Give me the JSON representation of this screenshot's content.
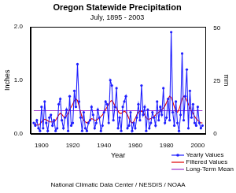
{
  "chart_data": {
    "type": "line",
    "title": "Oregon Statewide Precipitation",
    "subtitle": "July, 1895 - 2003",
    "xlabel": "Year",
    "ylabel": "Inches",
    "y2label": "mm",
    "source": "National Climatic Data Center / NESDIS / NOAA",
    "x": [
      1895,
      1896,
      1897,
      1898,
      1899,
      1900,
      1901,
      1902,
      1903,
      1904,
      1905,
      1906,
      1907,
      1908,
      1909,
      1910,
      1911,
      1912,
      1913,
      1914,
      1915,
      1916,
      1917,
      1918,
      1919,
      1920,
      1921,
      1922,
      1923,
      1924,
      1925,
      1926,
      1927,
      1928,
      1929,
      1930,
      1931,
      1932,
      1933,
      1934,
      1935,
      1936,
      1937,
      1938,
      1939,
      1940,
      1941,
      1942,
      1943,
      1944,
      1945,
      1946,
      1947,
      1948,
      1949,
      1950,
      1951,
      1952,
      1953,
      1954,
      1955,
      1956,
      1957,
      1958,
      1959,
      1960,
      1961,
      1962,
      1963,
      1964,
      1965,
      1966,
      1967,
      1968,
      1969,
      1970,
      1971,
      1972,
      1973,
      1974,
      1975,
      1976,
      1977,
      1978,
      1979,
      1980,
      1981,
      1982,
      1983,
      1984,
      1985,
      1986,
      1987,
      1988,
      1989,
      1990,
      1991,
      1992,
      1993,
      1994,
      1995,
      1996,
      1997,
      1998,
      1999,
      2000,
      2001,
      2002,
      2003
    ],
    "series": [
      {
        "name": "Yearly Values",
        "color": "#1f1fff",
        "marker": "circle",
        "line_style": "solid",
        "values": [
          0.2,
          0.15,
          0.25,
          0.1,
          0.05,
          0.5,
          0.1,
          0.6,
          0.2,
          0.05,
          0.3,
          0.35,
          0.15,
          0.25,
          0.05,
          0.1,
          0.55,
          0.65,
          0.25,
          0.1,
          0.3,
          0.45,
          0.05,
          0.7,
          0.15,
          0.2,
          0.8,
          0.5,
          1.3,
          0.6,
          0.3,
          0.05,
          0.4,
          0.1,
          0.05,
          0.2,
          0.25,
          0.5,
          0.35,
          0.1,
          0.2,
          0.45,
          0.3,
          0.05,
          0.15,
          0.4,
          0.6,
          0.55,
          0.2,
          1.0,
          0.9,
          0.25,
          0.5,
          0.85,
          0.1,
          0.3,
          0.05,
          0.5,
          0.6,
          0.7,
          0.1,
          0.15,
          0.4,
          0.05,
          0.2,
          0.1,
          0.3,
          0.55,
          0.25,
          0.9,
          0.35,
          0.5,
          0.05,
          0.45,
          0.1,
          0.2,
          0.4,
          0.3,
          0.15,
          0.6,
          0.25,
          0.5,
          0.35,
          0.85,
          0.2,
          0.3,
          0.65,
          0.25,
          1.9,
          0.4,
          0.15,
          0.6,
          0.2,
          0.05,
          0.35,
          1.5,
          0.25,
          0.7,
          1.2,
          0.1,
          0.8,
          0.3,
          0.55,
          0.2,
          0.15,
          0.5,
          0.2,
          0.1,
          0.15
        ]
      },
      {
        "name": "Filtered Values",
        "color": "#e00000",
        "line_style": "solid",
        "values": [
          0.18,
          0.17,
          0.16,
          0.16,
          0.18,
          0.22,
          0.25,
          0.27,
          0.26,
          0.24,
          0.22,
          0.22,
          0.22,
          0.22,
          0.25,
          0.3,
          0.35,
          0.38,
          0.36,
          0.32,
          0.3,
          0.33,
          0.38,
          0.45,
          0.5,
          0.55,
          0.62,
          0.65,
          0.62,
          0.52,
          0.4,
          0.3,
          0.25,
          0.22,
          0.2,
          0.22,
          0.25,
          0.28,
          0.27,
          0.25,
          0.25,
          0.27,
          0.3,
          0.32,
          0.35,
          0.4,
          0.45,
          0.5,
          0.55,
          0.6,
          0.62,
          0.58,
          0.52,
          0.48,
          0.42,
          0.38,
          0.38,
          0.4,
          0.42,
          0.4,
          0.35,
          0.28,
          0.22,
          0.2,
          0.22,
          0.28,
          0.35,
          0.4,
          0.42,
          0.42,
          0.4,
          0.35,
          0.3,
          0.27,
          0.27,
          0.28,
          0.3,
          0.32,
          0.35,
          0.38,
          0.4,
          0.42,
          0.45,
          0.48,
          0.52,
          0.58,
          0.65,
          0.7,
          0.68,
          0.6,
          0.5,
          0.42,
          0.4,
          0.45,
          0.55,
          0.65,
          0.7,
          0.68,
          0.62,
          0.55,
          0.48,
          0.42,
          0.38,
          0.32,
          0.28,
          0.25,
          0.22,
          0.2,
          0.2
        ]
      },
      {
        "name": "Long-Term Mean",
        "color": "#9933cc",
        "line_style": "solid",
        "x": [
          1895,
          2003
        ],
        "values": [
          0.43,
          0.43
        ]
      }
    ],
    "xlim": [
      1893,
      2005
    ],
    "xticks": [
      1900,
      1920,
      1940,
      1960,
      1980,
      2000
    ],
    "ylim": [
      0,
      2
    ],
    "yticks": [
      {
        "value": 0,
        "label": "0.0"
      },
      {
        "value": 1,
        "label": "1.0"
      },
      {
        "value": 2,
        "label": "2.0"
      }
    ],
    "y2lim": [
      0,
      50.8
    ],
    "y2ticks": [
      0,
      25,
      50
    ],
    "grid": false,
    "legend": "lower right"
  }
}
